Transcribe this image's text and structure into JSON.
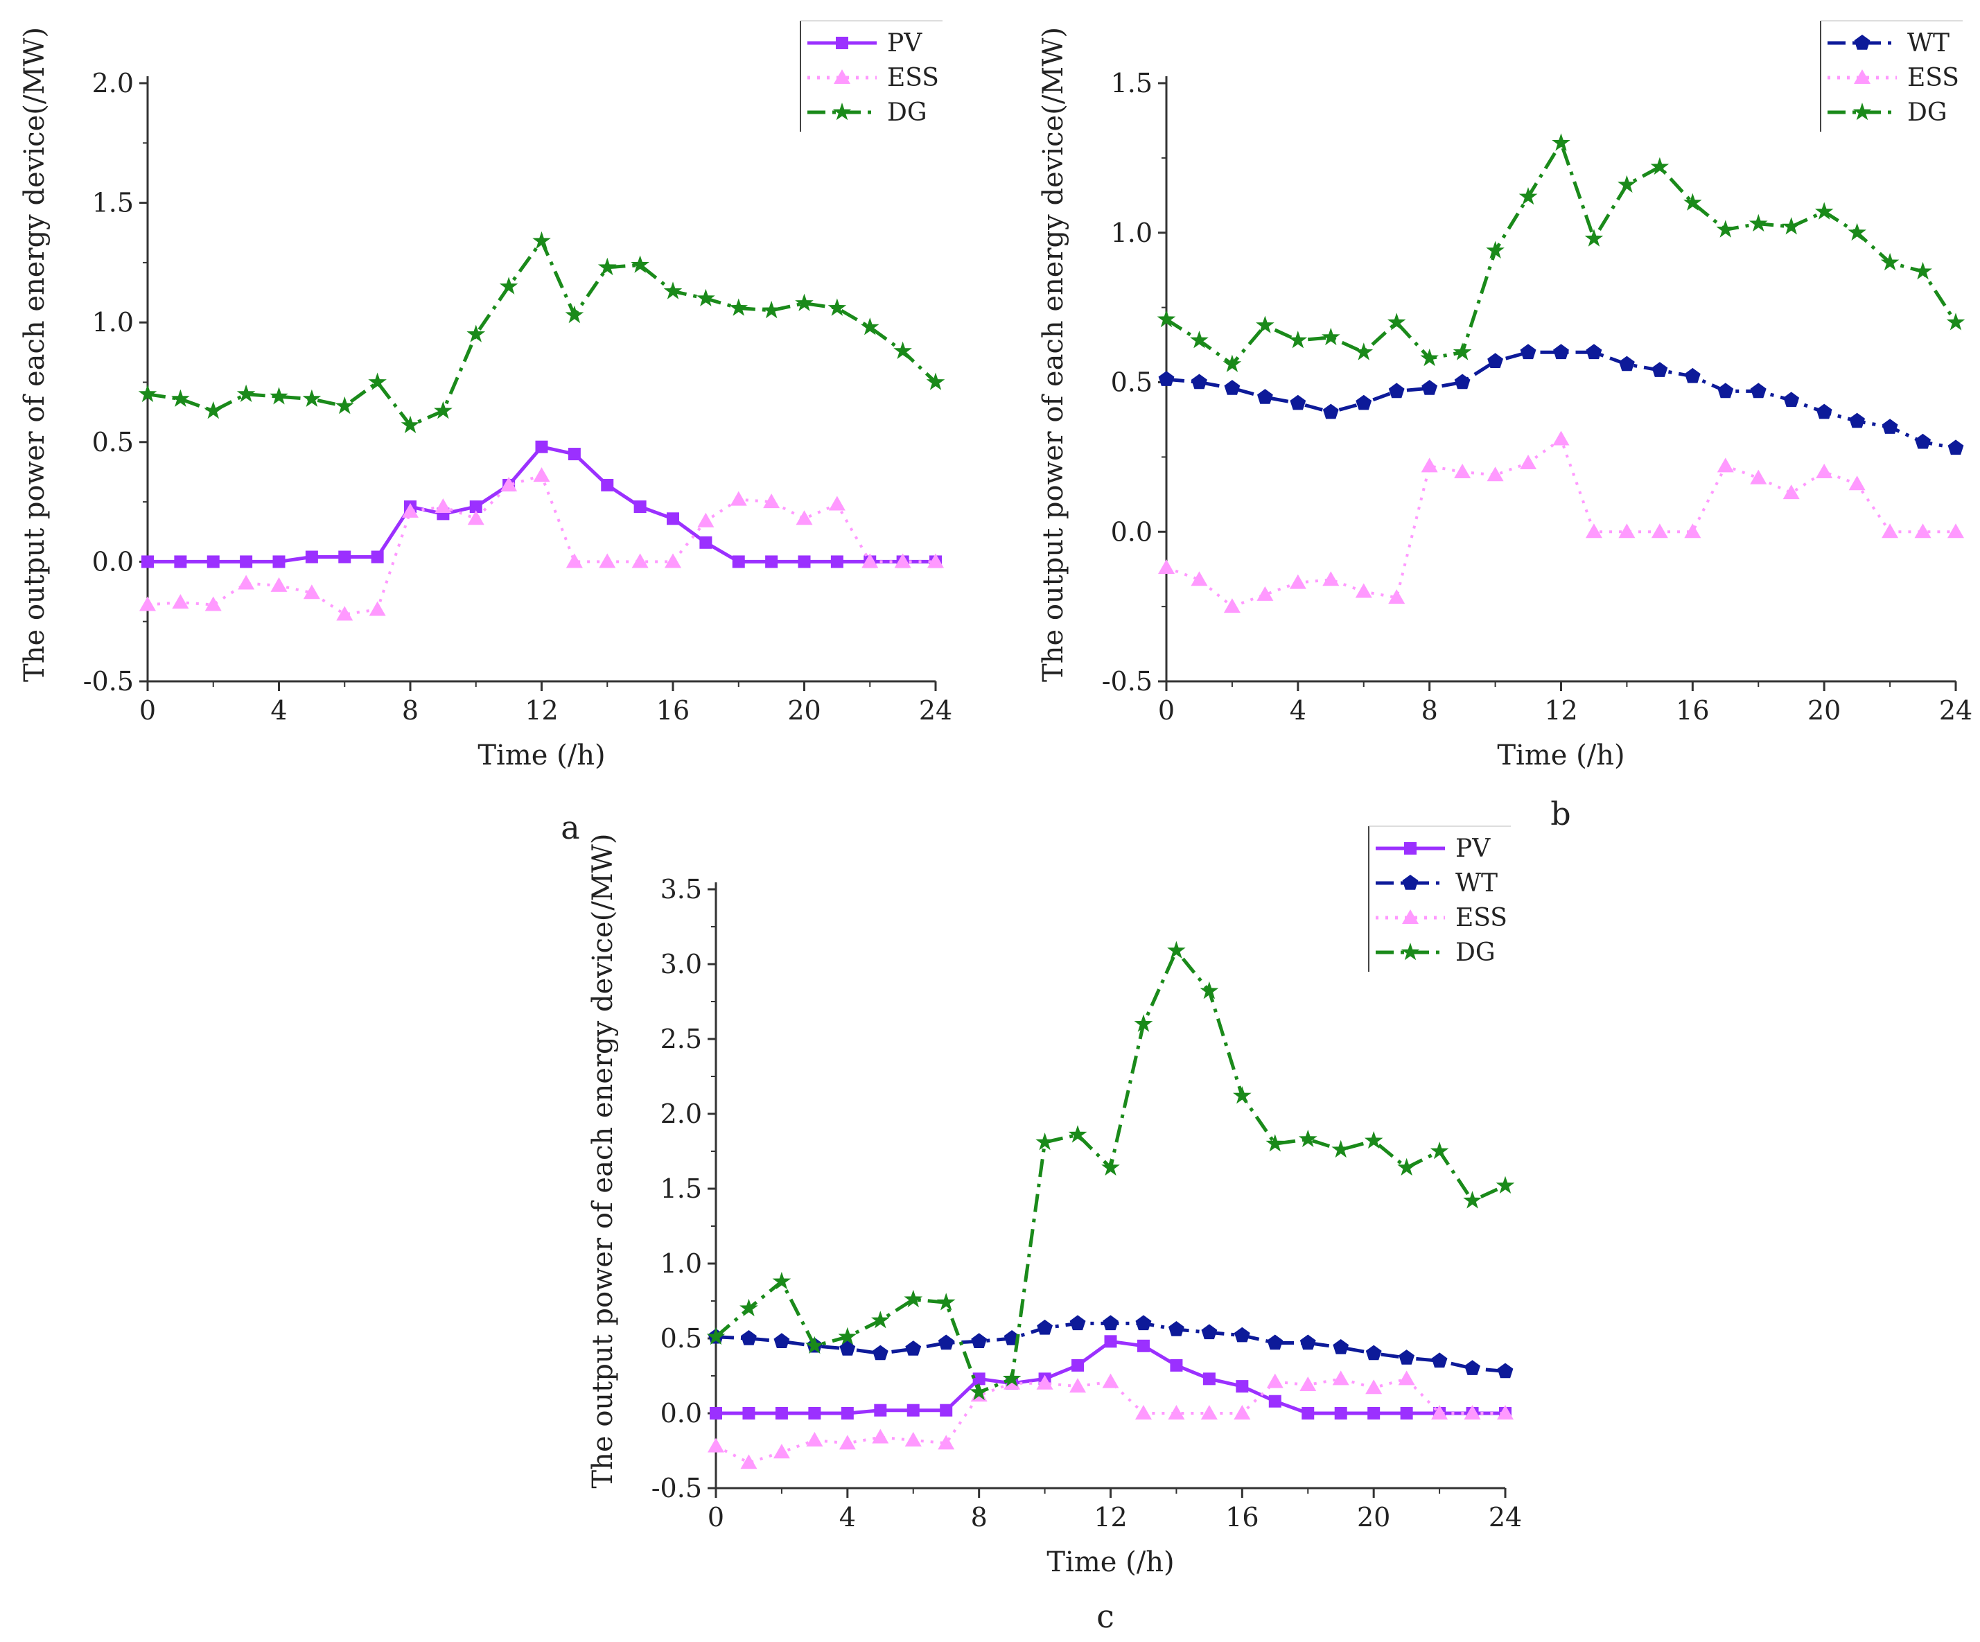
{
  "chart_data": [
    {
      "panel": "a",
      "type": "line",
      "caption": "a",
      "xlabel": "Time (/h)",
      "ylabel": "The output power of each energy device(/MW)",
      "xlim": [
        0,
        24
      ],
      "ylim": [
        -0.5,
        2.0
      ],
      "xticks": [
        0,
        4,
        8,
        12,
        16,
        20,
        24
      ],
      "xtick_labels": [
        "0",
        "4",
        "8",
        "12",
        "16",
        "20",
        "24"
      ],
      "yticks": [
        -0.5,
        0.0,
        0.5,
        1.0,
        1.5,
        2.0
      ],
      "ytick_labels": [
        "-0.5",
        "0.0",
        "0.5",
        "1.0",
        "1.5",
        "2.0"
      ],
      "legend_position": "top-right",
      "x": [
        0,
        1,
        2,
        3,
        4,
        5,
        6,
        7,
        8,
        9,
        10,
        11,
        12,
        13,
        14,
        15,
        16,
        17,
        18,
        19,
        20,
        21,
        22,
        23,
        24
      ],
      "series": [
        {
          "name": "PV",
          "color": "#9b30ff",
          "marker": "square",
          "dash": "solid",
          "values": [
            0,
            0,
            0,
            0,
            0,
            0.02,
            0.02,
            0.02,
            0.23,
            0.2,
            0.23,
            0.32,
            0.48,
            0.45,
            0.32,
            0.23,
            0.18,
            0.08,
            0,
            0,
            0,
            0,
            0,
            0,
            0
          ]
        },
        {
          "name": "ESS",
          "color": "#ff99ff",
          "marker": "triangle",
          "dash": "dotted",
          "values": [
            -0.18,
            -0.17,
            -0.18,
            -0.09,
            -0.1,
            -0.13,
            -0.22,
            -0.2,
            0.21,
            0.23,
            0.18,
            0.32,
            0.36,
            0,
            0,
            0,
            0,
            0.17,
            0.26,
            0.25,
            0.18,
            0.24,
            0,
            0,
            0
          ]
        },
        {
          "name": "DG",
          "color": "#1a8a1a",
          "marker": "star",
          "dash": "dashdot",
          "values": [
            0.7,
            0.68,
            0.63,
            0.7,
            0.69,
            0.68,
            0.65,
            0.75,
            0.57,
            0.63,
            0.95,
            1.15,
            1.34,
            1.03,
            1.23,
            1.24,
            1.13,
            1.1,
            1.06,
            1.05,
            1.08,
            1.06,
            0.98,
            0.88,
            0.75
          ]
        }
      ]
    },
    {
      "panel": "b",
      "type": "line",
      "caption": "b",
      "xlabel": "Time (/h)",
      "ylabel": "The output power of each energy device(/MW)",
      "xlim": [
        0,
        24
      ],
      "ylim": [
        -0.5,
        1.5
      ],
      "xticks": [
        0,
        4,
        8,
        12,
        16,
        20,
        24
      ],
      "xtick_labels": [
        "0",
        "4",
        "8",
        "12",
        "16",
        "20",
        "24"
      ],
      "yticks": [
        -0.5,
        0.0,
        0.5,
        1.0,
        1.5
      ],
      "ytick_labels": [
        "-0.5",
        "0.0",
        "0.5",
        "1.0",
        "1.5"
      ],
      "legend_position": "top-right",
      "x": [
        0,
        1,
        2,
        3,
        4,
        5,
        6,
        7,
        8,
        9,
        10,
        11,
        12,
        13,
        14,
        15,
        16,
        17,
        18,
        19,
        20,
        21,
        22,
        23,
        24
      ],
      "series": [
        {
          "name": "WT",
          "color": "#0d1a99",
          "marker": "pentagon",
          "dash": "dashdot",
          "values": [
            0.51,
            0.5,
            0.48,
            0.45,
            0.43,
            0.4,
            0.43,
            0.47,
            0.48,
            0.5,
            0.57,
            0.6,
            0.6,
            0.6,
            0.56,
            0.54,
            0.52,
            0.47,
            0.47,
            0.44,
            0.4,
            0.37,
            0.35,
            0.3,
            0.28
          ]
        },
        {
          "name": "ESS",
          "color": "#ff99ff",
          "marker": "triangle",
          "dash": "dotted",
          "values": [
            -0.12,
            -0.16,
            -0.25,
            -0.21,
            -0.17,
            -0.16,
            -0.2,
            -0.22,
            0.22,
            0.2,
            0.19,
            0.23,
            0.31,
            0,
            0,
            0,
            0,
            0.22,
            0.18,
            0.13,
            0.2,
            0.16,
            0,
            0,
            0
          ]
        },
        {
          "name": "DG",
          "color": "#1a8a1a",
          "marker": "star",
          "dash": "dashdot",
          "values": [
            0.71,
            0.64,
            0.56,
            0.69,
            0.64,
            0.65,
            0.6,
            0.7,
            0.58,
            0.6,
            0.94,
            1.12,
            1.3,
            0.98,
            1.16,
            1.22,
            1.1,
            1.01,
            1.03,
            1.02,
            1.07,
            1.0,
            0.9,
            0.87,
            0.7
          ]
        }
      ]
    },
    {
      "panel": "c",
      "type": "line",
      "caption": "c",
      "xlabel": "Time (/h)",
      "ylabel": "The output power of each energy device(/MW)",
      "xlim": [
        0,
        24
      ],
      "ylim": [
        -0.5,
        3.5
      ],
      "xticks": [
        0,
        4,
        8,
        12,
        16,
        20,
        24
      ],
      "xtick_labels": [
        "0",
        "4",
        "8",
        "12",
        "16",
        "20",
        "24"
      ],
      "yticks": [
        -0.5,
        0.0,
        0.5,
        1.0,
        1.5,
        2.0,
        2.5,
        3.0,
        3.5
      ],
      "ytick_labels": [
        "-0.5",
        "0.0",
        "0.5",
        "1.0",
        "1.5",
        "2.0",
        "2.5",
        "3.0",
        "3.5"
      ],
      "legend_position": "top-right",
      "x": [
        0,
        1,
        2,
        3,
        4,
        5,
        6,
        7,
        8,
        9,
        10,
        11,
        12,
        13,
        14,
        15,
        16,
        17,
        18,
        19,
        20,
        21,
        22,
        23,
        24
      ],
      "series": [
        {
          "name": "PV",
          "color": "#9b30ff",
          "marker": "square",
          "dash": "solid",
          "values": [
            0,
            0,
            0,
            0,
            0,
            0.02,
            0.02,
            0.02,
            0.23,
            0.2,
            0.23,
            0.32,
            0.48,
            0.45,
            0.32,
            0.23,
            0.18,
            0.08,
            0,
            0,
            0,
            0,
            0,
            0,
            0
          ]
        },
        {
          "name": "WT",
          "color": "#0d1a99",
          "marker": "pentagon",
          "dash": "dashdot",
          "values": [
            0.51,
            0.5,
            0.48,
            0.45,
            0.43,
            0.4,
            0.43,
            0.47,
            0.48,
            0.5,
            0.57,
            0.6,
            0.6,
            0.6,
            0.56,
            0.54,
            0.52,
            0.47,
            0.47,
            0.44,
            0.4,
            0.37,
            0.35,
            0.3,
            0.28
          ]
        },
        {
          "name": "ESS",
          "color": "#ff99ff",
          "marker": "triangle",
          "dash": "dotted",
          "values": [
            -0.22,
            -0.33,
            -0.26,
            -0.18,
            -0.2,
            -0.16,
            -0.18,
            -0.2,
            0.12,
            0.2,
            0.2,
            0.18,
            0.21,
            0,
            0,
            0,
            0,
            0.21,
            0.19,
            0.23,
            0.17,
            0.23,
            0,
            0,
            0
          ]
        },
        {
          "name": "DG",
          "color": "#1a8a1a",
          "marker": "star",
          "dash": "dashdot",
          "values": [
            0.51,
            0.7,
            0.88,
            0.45,
            0.51,
            0.62,
            0.76,
            0.74,
            0.14,
            0.23,
            1.81,
            1.86,
            1.64,
            2.6,
            3.09,
            2.82,
            2.12,
            1.8,
            1.83,
            1.76,
            1.82,
            1.64,
            1.75,
            1.42,
            1.52
          ]
        }
      ]
    }
  ]
}
